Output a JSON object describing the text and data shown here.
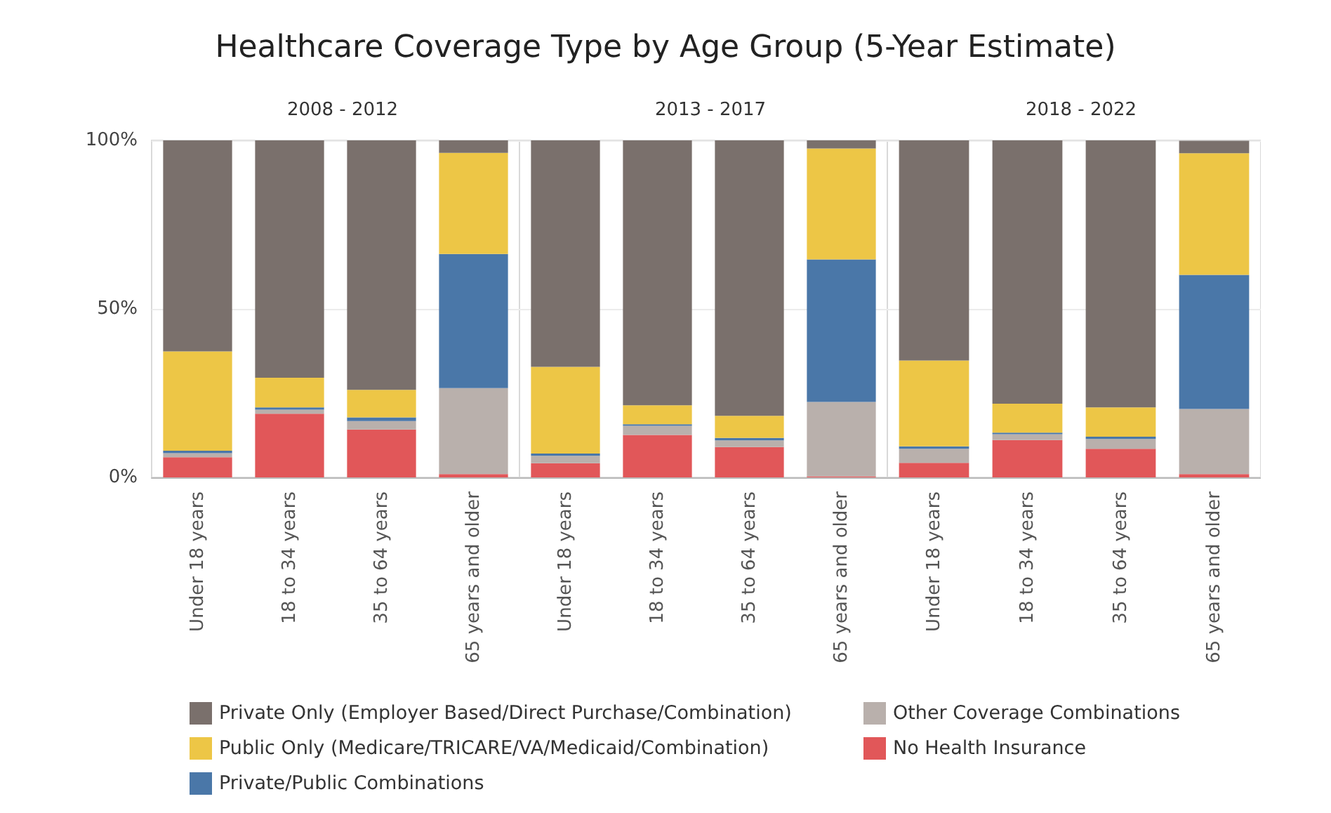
{
  "chart_data": [
    {
      "type": "bar",
      "title": "Healthcare Coverage Type by Age Group (5-Year Estimate)",
      "subtitle": "2008 - 2012",
      "categories": [
        "Under 18 years",
        "18 to 34 years",
        "35 to 64 years",
        "65 years and older"
      ],
      "stacked": true,
      "ylim": [
        0,
        100
      ],
      "yticks": [
        {
          "value": 0,
          "label": "0%"
        },
        {
          "value": 50,
          "label": "50%"
        },
        {
          "value": 100,
          "label": "100%"
        }
      ],
      "grid": "y",
      "legend": "bottom",
      "series": [
        {
          "name": "No Health Insurance",
          "color": "#e15759",
          "values": [
            6.0,
            18.9,
            14.2,
            1.0
          ]
        },
        {
          "name": "Other Coverage Combinations",
          "color": "#b9b0ac",
          "values": [
            1.2,
            1.2,
            2.5,
            25.5
          ]
        },
        {
          "name": "Private/Public Combinations",
          "color": "#4a77a8",
          "values": [
            0.7,
            0.7,
            1.1,
            39.8
          ]
        },
        {
          "name": "Public Only (Medicare/TRICARE/VA/Medicaid/Combination)",
          "color": "#edc646",
          "values": [
            29.5,
            8.8,
            8.2,
            30.0
          ]
        },
        {
          "name": "Private Only (Employer Based/Direct Purchase/Combination)",
          "color": "#7a706c",
          "values": [
            62.6,
            70.4,
            74.0,
            3.7
          ]
        }
      ]
    },
    {
      "type": "bar",
      "subtitle": "2013 - 2017",
      "categories": [
        "Under 18 years",
        "18 to 34 years",
        "35 to 64 years",
        "65 years and older"
      ],
      "stacked": true,
      "ylim": [
        0,
        100
      ],
      "yticks": [
        {
          "value": 0,
          "label": null
        },
        {
          "value": 50,
          "label": null
        },
        {
          "value": 100,
          "label": null
        }
      ],
      "grid": "y",
      "tick_labels": "x",
      "series": [
        {
          "color": "#e15759",
          "values": [
            4.2,
            12.6,
            9.0,
            0.3
          ]
        },
        {
          "color": "#b9b0ac",
          "values": [
            2.2,
            2.7,
            2.0,
            22.1
          ]
        },
        {
          "color": "#4a77a8",
          "values": [
            0.7,
            0.5,
            0.7,
            42.3
          ]
        },
        {
          "color": "#edc646",
          "values": [
            25.7,
            5.6,
            6.6,
            32.9
          ]
        },
        {
          "color": "#7a706c",
          "values": [
            67.2,
            78.6,
            81.7,
            2.4
          ]
        }
      ]
    },
    {
      "type": "bar",
      "subtitle": "2018 - 2022",
      "categories": [
        "Under 18 years",
        "18 to 34 years",
        "35 to 64 years",
        "65 years and older"
      ],
      "stacked": true,
      "ylim": [
        0,
        100
      ],
      "yticks": [
        {
          "value": 0,
          "label": null
        },
        {
          "value": 50,
          "label": null
        },
        {
          "value": 100,
          "label": null
        }
      ],
      "grid": "y",
      "tick_labels": "x",
      "series": [
        {
          "color": "#e15759",
          "values": [
            4.3,
            11.1,
            8.5,
            1.0
          ]
        },
        {
          "color": "#b9b0ac",
          "values": [
            4.2,
            1.7,
            2.9,
            19.3
          ]
        },
        {
          "color": "#4a77a8",
          "values": [
            0.7,
            0.5,
            0.7,
            39.8
          ]
        },
        {
          "color": "#edc646",
          "values": [
            25.5,
            8.6,
            8.7,
            36.1
          ]
        },
        {
          "color": "#7a706c",
          "values": [
            65.3,
            78.1,
            79.2,
            3.7
          ]
        }
      ]
    }
  ]
}
